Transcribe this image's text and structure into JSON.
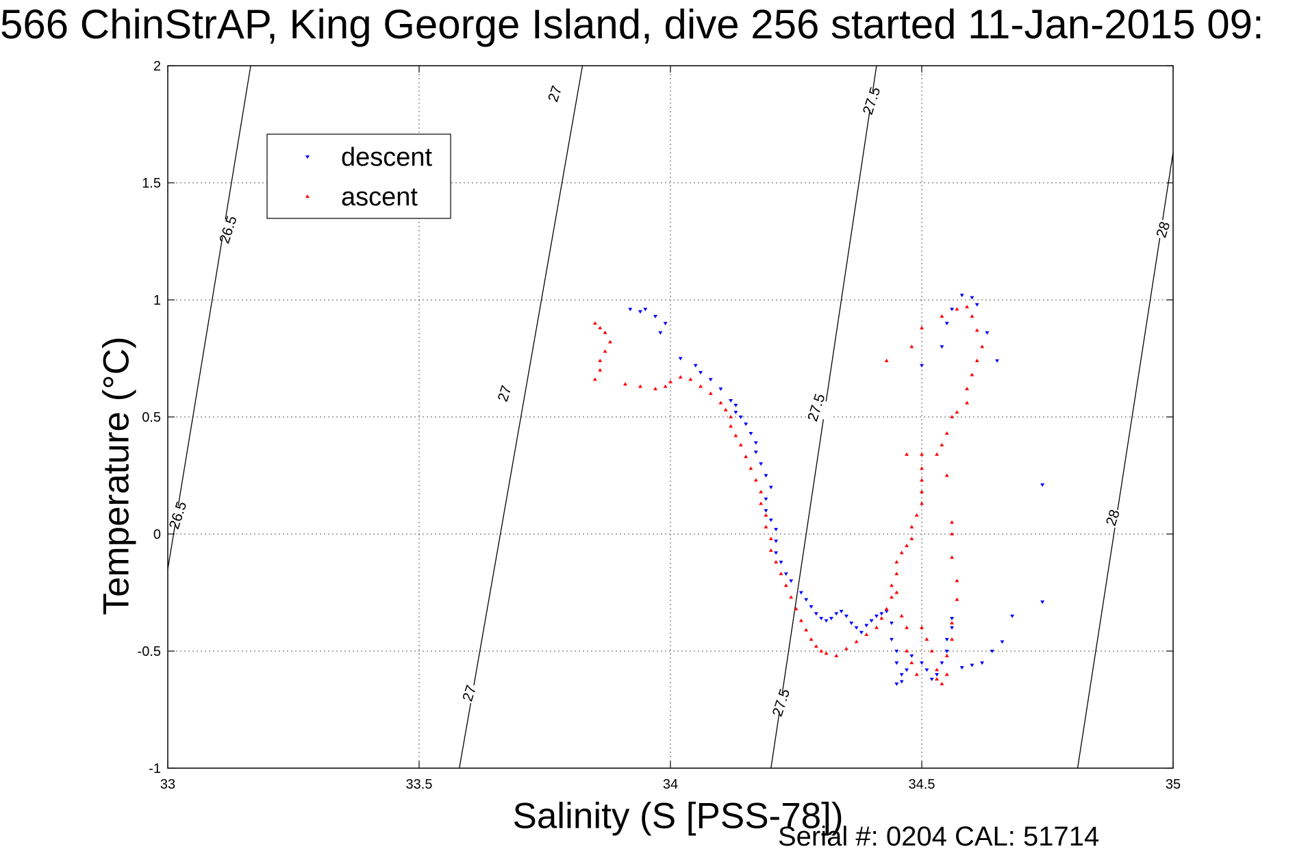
{
  "title": "566 ChinStrAP, King George Island, dive 256 started 11-Jan-2015 09:",
  "footer": "Serial #: 0204  CAL: 51714",
  "chart_data": {
    "type": "scatter",
    "xlabel": "Salinity (S [PSS-78])",
    "ylabel": "Temperature (°C)",
    "xlim": [
      33,
      35
    ],
    "ylim": [
      -1,
      2
    ],
    "xticks": [
      "33",
      "33.5",
      "34",
      "34.5",
      "35"
    ],
    "yticks": [
      "-1",
      "-0.5",
      "0",
      "0.5",
      "1",
      "1.5",
      "2"
    ],
    "grid": true,
    "legend": {
      "position": "top-left",
      "entries": [
        "descent",
        "ascent"
      ]
    },
    "colors": {
      "descent": "#0000ff",
      "ascent": "#ff0000"
    },
    "density_contours": [
      {
        "sigma": "26.5",
        "points": [
          [
            33.0,
            -0.15
          ],
          [
            33.165,
            2.0
          ]
        ]
      },
      {
        "sigma": "27",
        "points": [
          [
            33.58,
            -1.0
          ],
          [
            33.825,
            2.0
          ]
        ]
      },
      {
        "sigma": "27.5",
        "points": [
          [
            34.2,
            -1.0
          ],
          [
            34.41,
            2.0
          ]
        ]
      },
      {
        "sigma": "28",
        "points": [
          [
            34.81,
            -1.0
          ],
          [
            35.0,
            1.63
          ]
        ]
      }
    ],
    "contour_labels": [
      {
        "text": "26.5",
        "x": 33.12,
        "y": 1.3
      },
      {
        "text": "26.5",
        "x": 33.02,
        "y": 0.08
      },
      {
        "text": "27",
        "x": 33.77,
        "y": 1.88
      },
      {
        "text": "27",
        "x": 33.67,
        "y": 0.6
      },
      {
        "text": "27",
        "x": 33.6,
        "y": -0.68
      },
      {
        "text": "27.5",
        "x": 34.4,
        "y": 1.85
      },
      {
        "text": "27.5",
        "x": 34.29,
        "y": 0.54
      },
      {
        "text": "27.5",
        "x": 34.22,
        "y": -0.72
      },
      {
        "text": "28",
        "x": 34.98,
        "y": 1.3
      },
      {
        "text": "28",
        "x": 34.88,
        "y": 0.07
      }
    ],
    "series": [
      {
        "name": "descent",
        "marker": "triangle-down",
        "points": [
          [
            33.92,
            0.96
          ],
          [
            33.94,
            0.95
          ],
          [
            33.95,
            0.96
          ],
          [
            33.97,
            0.93
          ],
          [
            33.99,
            0.9
          ],
          [
            33.98,
            0.86
          ],
          [
            34.02,
            0.75
          ],
          [
            34.05,
            0.72
          ],
          [
            34.06,
            0.69
          ],
          [
            34.08,
            0.66
          ],
          [
            34.1,
            0.62
          ],
          [
            34.12,
            0.57
          ],
          [
            34.13,
            0.55
          ],
          [
            34.13,
            0.52
          ],
          [
            34.14,
            0.5
          ],
          [
            34.15,
            0.47
          ],
          [
            34.16,
            0.43
          ],
          [
            34.17,
            0.39
          ],
          [
            34.17,
            0.35
          ],
          [
            34.18,
            0.3
          ],
          [
            34.19,
            0.25
          ],
          [
            34.2,
            0.2
          ],
          [
            34.19,
            0.15
          ],
          [
            34.19,
            0.1
          ],
          [
            34.2,
            0.06
          ],
          [
            34.21,
            0.02
          ],
          [
            34.21,
            -0.03
          ],
          [
            34.21,
            -0.08
          ],
          [
            34.22,
            -0.12
          ],
          [
            34.23,
            -0.17
          ],
          [
            34.24,
            -0.2
          ],
          [
            34.26,
            -0.25
          ],
          [
            34.27,
            -0.28
          ],
          [
            34.28,
            -0.31
          ],
          [
            34.29,
            -0.34
          ],
          [
            34.3,
            -0.36
          ],
          [
            34.31,
            -0.37
          ],
          [
            34.32,
            -0.36
          ],
          [
            34.33,
            -0.34
          ],
          [
            34.34,
            -0.33
          ],
          [
            34.35,
            -0.35
          ],
          [
            34.36,
            -0.38
          ],
          [
            34.37,
            -0.4
          ],
          [
            34.38,
            -0.42
          ],
          [
            34.39,
            -0.39
          ],
          [
            34.4,
            -0.37
          ],
          [
            34.41,
            -0.35
          ],
          [
            34.42,
            -0.34
          ],
          [
            34.43,
            -0.33
          ],
          [
            34.44,
            -0.38
          ],
          [
            34.44,
            -0.45
          ],
          [
            34.45,
            -0.5
          ],
          [
            34.45,
            -0.55
          ],
          [
            34.46,
            -0.6
          ],
          [
            34.46,
            -0.63
          ],
          [
            34.45,
            -0.64
          ],
          [
            34.47,
            -0.58
          ],
          [
            34.48,
            -0.52
          ],
          [
            34.5,
            -0.55
          ],
          [
            34.51,
            -0.58
          ],
          [
            34.52,
            -0.62
          ],
          [
            34.53,
            -0.6
          ],
          [
            34.54,
            -0.55
          ],
          [
            34.55,
            -0.5
          ],
          [
            34.55,
            -0.45
          ],
          [
            34.56,
            -0.4
          ],
          [
            34.56,
            -0.36
          ],
          [
            34.58,
            -0.57
          ],
          [
            34.6,
            -0.56
          ],
          [
            34.62,
            -0.55
          ],
          [
            34.64,
            -0.5
          ],
          [
            34.66,
            -0.46
          ],
          [
            34.68,
            -0.35
          ],
          [
            34.74,
            -0.29
          ],
          [
            34.74,
            0.21
          ],
          [
            34.5,
            0.72
          ],
          [
            34.54,
            0.8
          ],
          [
            34.55,
            0.9
          ],
          [
            34.56,
            0.96
          ],
          [
            34.58,
            1.02
          ],
          [
            34.6,
            1.01
          ],
          [
            34.61,
            0.98
          ],
          [
            34.63,
            0.86
          ],
          [
            34.65,
            0.74
          ]
        ]
      },
      {
        "name": "ascent",
        "marker": "triangle-up",
        "points": [
          [
            33.85,
            0.9
          ],
          [
            33.86,
            0.88
          ],
          [
            33.87,
            0.86
          ],
          [
            33.88,
            0.82
          ],
          [
            33.87,
            0.78
          ],
          [
            33.86,
            0.74
          ],
          [
            33.86,
            0.7
          ],
          [
            33.85,
            0.66
          ],
          [
            33.91,
            0.64
          ],
          [
            33.94,
            0.63
          ],
          [
            33.97,
            0.62
          ],
          [
            33.99,
            0.63
          ],
          [
            34.0,
            0.65
          ],
          [
            34.02,
            0.67
          ],
          [
            34.04,
            0.66
          ],
          [
            34.06,
            0.63
          ],
          [
            34.08,
            0.6
          ],
          [
            34.1,
            0.56
          ],
          [
            34.11,
            0.53
          ],
          [
            34.12,
            0.5
          ],
          [
            34.12,
            0.46
          ],
          [
            34.13,
            0.42
          ],
          [
            34.14,
            0.38
          ],
          [
            34.15,
            0.33
          ],
          [
            34.16,
            0.28
          ],
          [
            34.17,
            0.23
          ],
          [
            34.18,
            0.18
          ],
          [
            34.18,
            0.13
          ],
          [
            34.19,
            0.08
          ],
          [
            34.19,
            0.03
          ],
          [
            34.2,
            -0.02
          ],
          [
            34.2,
            -0.07
          ],
          [
            34.21,
            -0.12
          ],
          [
            34.22,
            -0.17
          ],
          [
            34.23,
            -0.22
          ],
          [
            34.24,
            -0.27
          ],
          [
            34.25,
            -0.32
          ],
          [
            34.26,
            -0.37
          ],
          [
            34.27,
            -0.41
          ],
          [
            34.28,
            -0.45
          ],
          [
            34.29,
            -0.48
          ],
          [
            34.3,
            -0.5
          ],
          [
            34.31,
            -0.51
          ],
          [
            34.33,
            -0.52
          ],
          [
            34.35,
            -0.49
          ],
          [
            34.37,
            -0.46
          ],
          [
            34.39,
            -0.43
          ],
          [
            34.41,
            -0.4
          ],
          [
            34.42,
            -0.36
          ],
          [
            34.43,
            -0.32
          ],
          [
            34.44,
            -0.27
          ],
          [
            34.44,
            -0.22
          ],
          [
            34.45,
            -0.17
          ],
          [
            34.45,
            -0.12
          ],
          [
            34.46,
            -0.08
          ],
          [
            34.47,
            -0.05
          ],
          [
            34.48,
            -0.02
          ],
          [
            34.48,
            0.03
          ],
          [
            34.49,
            0.08
          ],
          [
            34.5,
            0.13
          ],
          [
            34.5,
            0.18
          ],
          [
            34.5,
            0.23
          ],
          [
            34.5,
            0.28
          ],
          [
            34.47,
            0.34
          ],
          [
            34.5,
            0.34
          ],
          [
            34.53,
            0.34
          ],
          [
            34.54,
            0.38
          ],
          [
            34.55,
            0.43
          ],
          [
            34.56,
            0.5
          ],
          [
            34.57,
            0.52
          ],
          [
            34.59,
            0.56
          ],
          [
            34.59,
            0.62
          ],
          [
            34.6,
            0.68
          ],
          [
            34.61,
            0.74
          ],
          [
            34.62,
            0.8
          ],
          [
            34.61,
            0.87
          ],
          [
            34.6,
            0.93
          ],
          [
            34.59,
            0.97
          ],
          [
            34.57,
            0.96
          ],
          [
            34.54,
            0.93
          ],
          [
            34.5,
            0.88
          ],
          [
            34.48,
            0.8
          ],
          [
            34.43,
            0.74
          ],
          [
            34.45,
            -0.25
          ],
          [
            34.46,
            -0.35
          ],
          [
            34.47,
            -0.4
          ],
          [
            34.47,
            -0.5
          ],
          [
            34.48,
            -0.55
          ],
          [
            34.49,
            -0.6
          ],
          [
            34.5,
            -0.4
          ],
          [
            34.51,
            -0.45
          ],
          [
            34.52,
            -0.5
          ],
          [
            34.53,
            -0.58
          ],
          [
            34.53,
            -0.62
          ],
          [
            34.54,
            -0.64
          ],
          [
            34.55,
            -0.6
          ],
          [
            34.55,
            -0.52
          ],
          [
            34.56,
            -0.45
          ],
          [
            34.56,
            -0.38
          ],
          [
            34.57,
            -0.28
          ],
          [
            34.57,
            -0.2
          ],
          [
            34.56,
            -0.1
          ],
          [
            34.56,
            0.0
          ],
          [
            34.56,
            0.05
          ],
          [
            34.55,
            0.25
          ]
        ]
      }
    ]
  }
}
